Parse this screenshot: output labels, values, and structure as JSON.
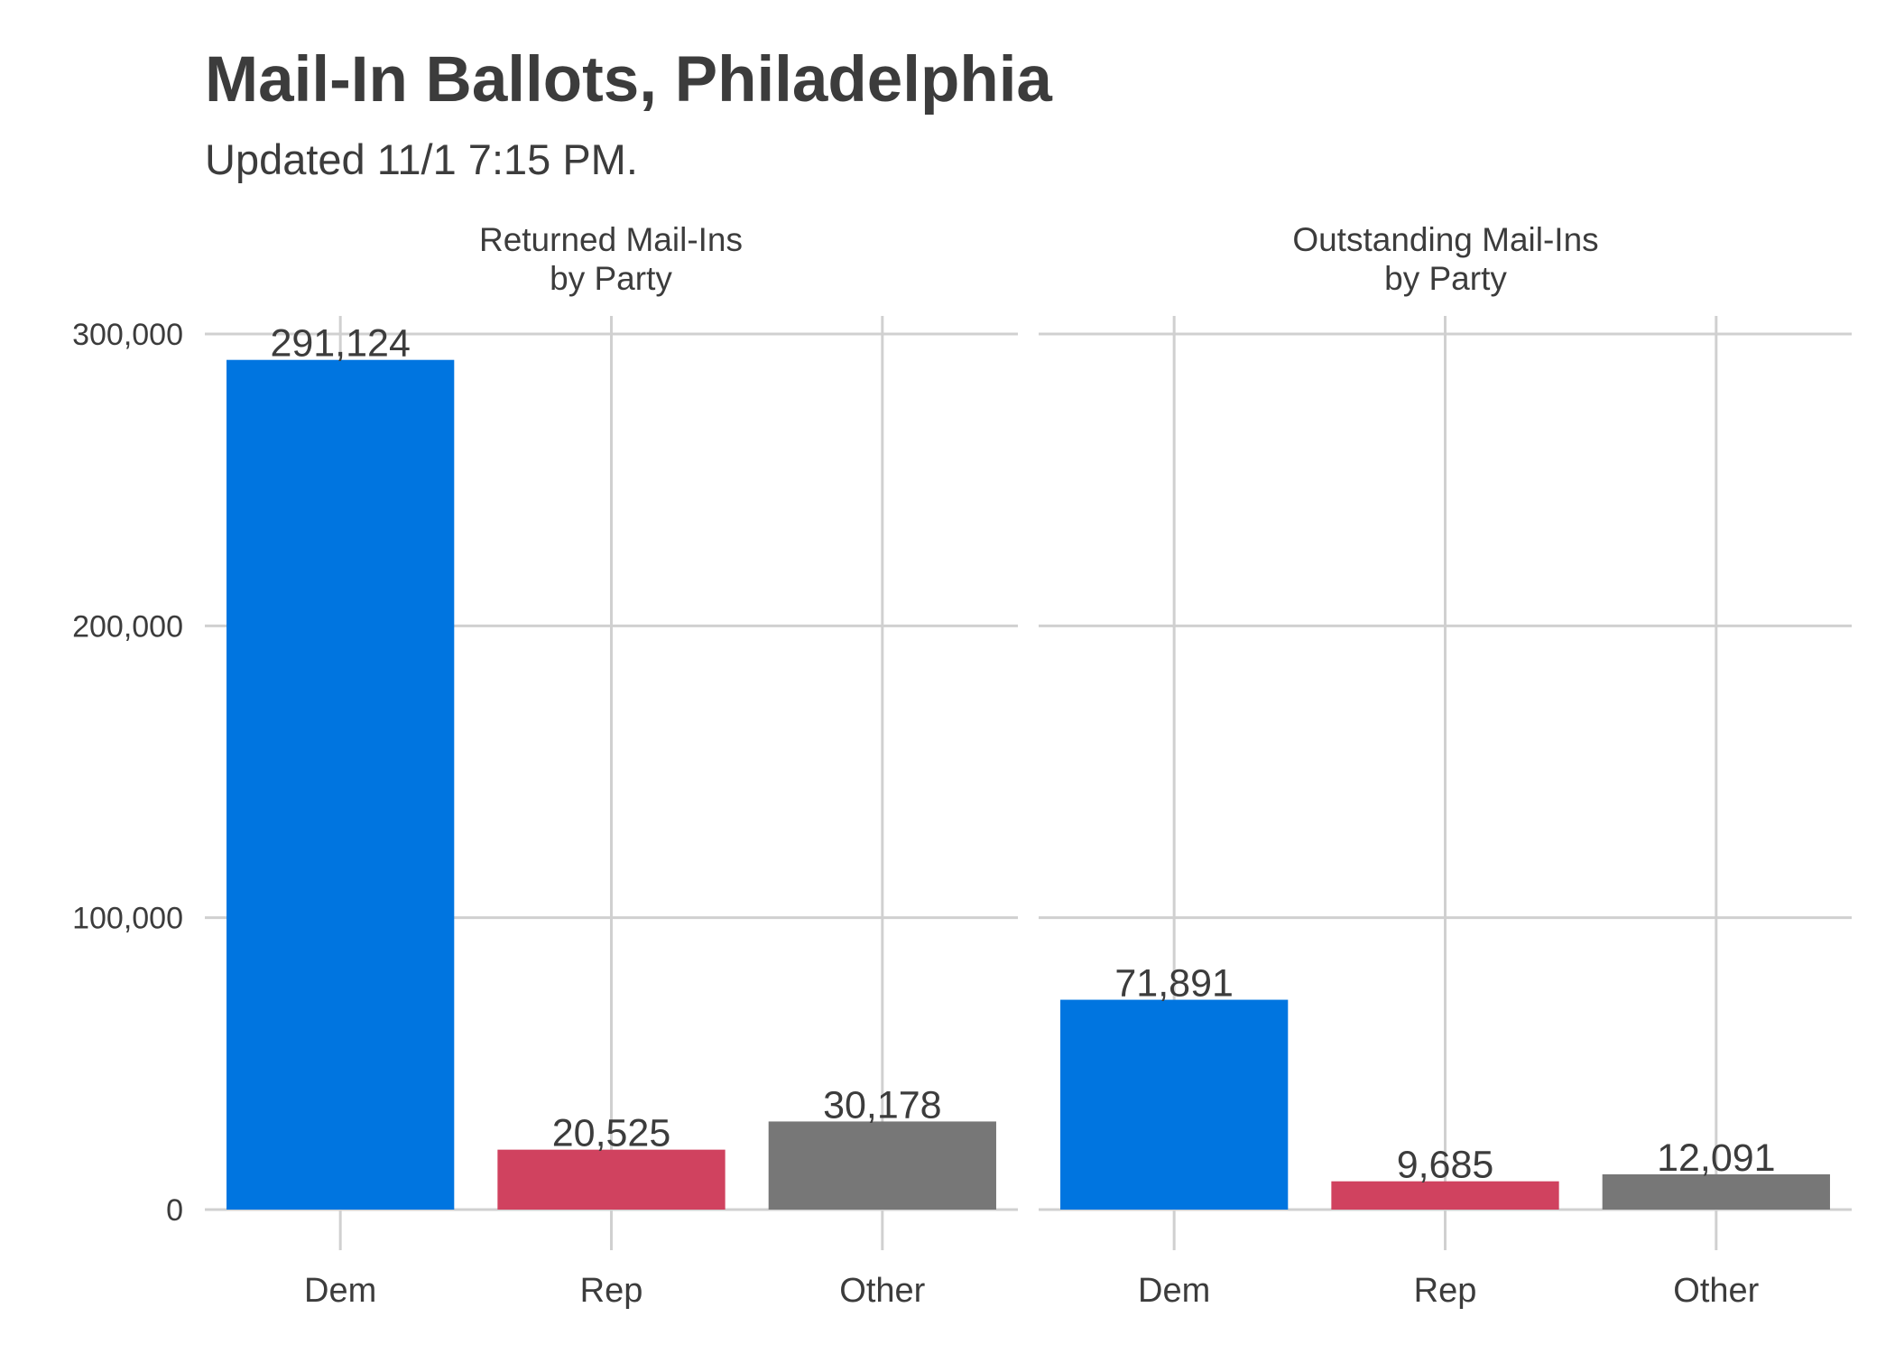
{
  "title": "Mail-In Ballots, Philadelphia",
  "subtitle": "Updated 11/1 7:15 PM.",
  "colors": {
    "Dem": "#0075e0",
    "Rep": "#d0425f",
    "Other": "#777777",
    "grid": "#d0d0d0",
    "text": "#3c3c3c"
  },
  "chart_data": [
    {
      "type": "bar",
      "title": "Returned Mail-Ins\nby Party",
      "categories": [
        "Dem",
        "Rep",
        "Other"
      ],
      "values": [
        291124,
        20525,
        30178
      ],
      "value_labels": [
        "291,124",
        "20,525",
        "30,178"
      ],
      "ylim": [
        0,
        300000
      ],
      "yticks": [
        0,
        100000,
        200000,
        300000
      ],
      "ytick_labels": [
        "0",
        "100,000",
        "200,000",
        "300,000"
      ],
      "grid": true,
      "xlabel": "",
      "ylabel": ""
    },
    {
      "type": "bar",
      "title": "Outstanding Mail-Ins\nby Party",
      "categories": [
        "Dem",
        "Rep",
        "Other"
      ],
      "values": [
        71891,
        9685,
        12091
      ],
      "value_labels": [
        "71,891",
        "9,685",
        "12,091"
      ],
      "ylim": [
        0,
        300000
      ],
      "yticks": [
        0,
        100000,
        200000,
        300000
      ],
      "ytick_labels": [
        "0",
        "100,000",
        "200,000",
        "300,000"
      ],
      "grid": true,
      "xlabel": "",
      "ylabel": ""
    }
  ]
}
